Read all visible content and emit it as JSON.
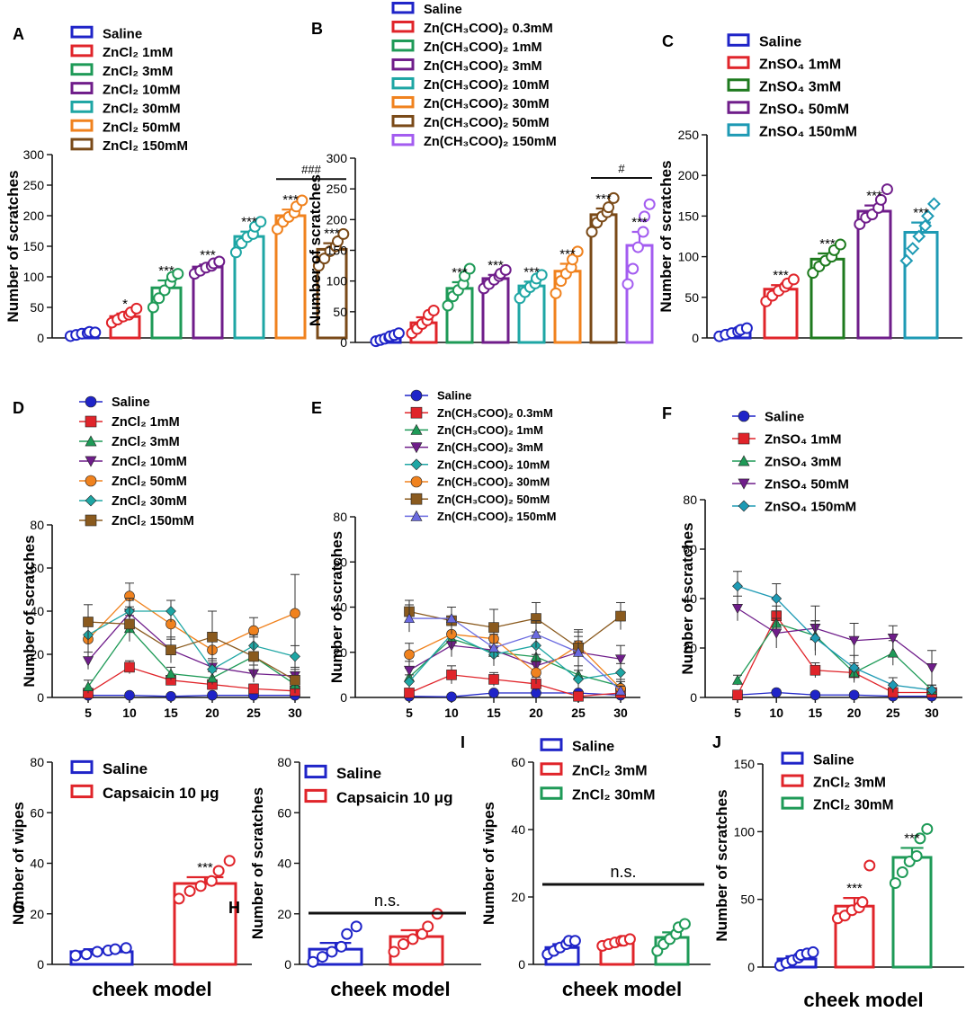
{
  "chart_data": [
    {
      "id": "A",
      "type": "bar",
      "ylabel": "Number of scratches",
      "ylim": [
        0,
        300
      ],
      "yticks": [
        0,
        50,
        100,
        150,
        200,
        250,
        300
      ],
      "series": [
        {
          "name": "Saline",
          "color": "#1f24c8",
          "value": 7,
          "sem": 2,
          "points": [
            3,
            5,
            7,
            8,
            10,
            9
          ],
          "sig": ""
        },
        {
          "name": "ZnCl₂ 1mM",
          "color": "#e0242a",
          "value": 35,
          "sem": 5,
          "points": [
            25,
            30,
            35,
            38,
            42,
            48
          ],
          "sig": "*"
        },
        {
          "name": "ZnCl₂ 3mM",
          "color": "#1e9a57",
          "value": 82,
          "sem": 12,
          "points": [
            50,
            65,
            78,
            90,
            100,
            105
          ],
          "sig": "***"
        },
        {
          "name": "ZnCl₂ 10mM",
          "color": "#6f1d8a",
          "value": 116,
          "sem": 4,
          "points": [
            105,
            110,
            115,
            118,
            122,
            125
          ],
          "sig": "***"
        },
        {
          "name": "ZnCl₂ 30mM",
          "color": "#1ea6a4",
          "value": 166,
          "sem": 8,
          "points": [
            140,
            155,
            165,
            170,
            182,
            190
          ],
          "sig": "***"
        },
        {
          "name": "ZnCl₂ 50mM",
          "color": "#f0821e",
          "value": 200,
          "sem": 10,
          "points": [
            178,
            190,
            198,
            205,
            215,
            225
          ],
          "sig": "***"
        },
        {
          "name": "ZnCl₂ 150mM",
          "color": "#7a4a18",
          "value": 145,
          "sem": 10,
          "points": [
            118,
            130,
            142,
            150,
            158,
            170
          ],
          "sig": "***"
        }
      ],
      "bracket": {
        "from": 5,
        "to": 6,
        "label": "###"
      }
    },
    {
      "id": "B",
      "type": "bar",
      "ylabel": "Number of scratches",
      "ylim": [
        0,
        300
      ],
      "yticks": [
        0,
        50,
        100,
        150,
        200,
        250,
        300
      ],
      "series": [
        {
          "name": "Saline",
          "color": "#1f24c8",
          "value": 7,
          "sem": 2,
          "points": [
            2,
            4,
            6,
            8,
            10,
            12,
            15
          ],
          "sig": ""
        },
        {
          "name": "Zn(CH₃COO)₂ 0.3mM",
          "color": "#e0242a",
          "value": 32,
          "sem": 9,
          "points": [
            15,
            22,
            30,
            36,
            45,
            52
          ],
          "sig": ""
        },
        {
          "name": "Zn(CH₃COO)₂ 1mM",
          "color": "#1e9a57",
          "value": 88,
          "sem": 10,
          "points": [
            60,
            75,
            85,
            95,
            108,
            120
          ],
          "sig": "***"
        },
        {
          "name": "Zn(CH₃COO)₂ 3mM",
          "color": "#6f1d8a",
          "value": 104,
          "sem": 6,
          "points": [
            88,
            95,
            102,
            108,
            112,
            118
          ],
          "sig": "***"
        },
        {
          "name": "Zn(CH₃COO)₂ 10mM",
          "color": "#1ea6a4",
          "value": 92,
          "sem": 7,
          "points": [
            72,
            82,
            90,
            96,
            104,
            110
          ],
          "sig": "***"
        },
        {
          "name": "Zn(CH₃COO)₂ 30mM",
          "color": "#f0821e",
          "value": 116,
          "sem": 12,
          "points": [
            80,
            100,
            112,
            122,
            135,
            148
          ],
          "sig": "***"
        },
        {
          "name": "Zn(CH₃COO)₂ 50mM",
          "color": "#7a4a18",
          "value": 208,
          "sem": 10,
          "points": [
            180,
            195,
            205,
            212,
            220,
            235
          ],
          "sig": "***"
        },
        {
          "name": "Zn(CH₃COO)₂ 150mM",
          "color": "#a35cf0",
          "value": 158,
          "sem": 22,
          "points": [
            95,
            120,
            155,
            180,
            205,
            225
          ],
          "sig": "***"
        }
      ],
      "bracket": {
        "from": 6,
        "to": 7,
        "label": "#"
      }
    },
    {
      "id": "C",
      "type": "bar",
      "ylabel": "Number of scratches",
      "ylim": [
        0,
        250
      ],
      "yticks": [
        0,
        50,
        100,
        150,
        200,
        250
      ],
      "series": [
        {
          "name": "Saline",
          "color": "#1f24c8",
          "value": 7,
          "sem": 2,
          "points": [
            2,
            4,
            6,
            8,
            10,
            12
          ],
          "sig": ""
        },
        {
          "name": "ZnSO₄ 1mM",
          "color": "#e0242a",
          "value": 60,
          "sem": 5,
          "points": [
            45,
            52,
            58,
            63,
            67,
            72
          ],
          "sig": "***"
        },
        {
          "name": "ZnSO₄ 3mM",
          "color": "#1e7a1e",
          "value": 97,
          "sem": 7,
          "points": [
            80,
            88,
            95,
            100,
            108,
            115
          ],
          "sig": "***"
        },
        {
          "name": "ZnSO₄ 50mM",
          "color": "#6f1d8a",
          "value": 156,
          "sem": 7,
          "points": [
            140,
            148,
            152,
            160,
            170,
            183
          ],
          "sig": "***"
        },
        {
          "name": "ZnSO₄ 150mM",
          "color": "#1e9ab4",
          "value": 130,
          "sem": 12,
          "points": [
            95,
            110,
            125,
            138,
            150,
            165
          ],
          "sig": "***"
        }
      ]
    },
    {
      "id": "D",
      "type": "line",
      "ylabel": "Number of scratches",
      "ylim": [
        0,
        80
      ],
      "yticks": [
        0,
        20,
        40,
        60,
        80
      ],
      "x": [
        5,
        10,
        15,
        20,
        25,
        30
      ],
      "series": [
        {
          "name": "Saline",
          "color": "#1f24c8",
          "marker": "circle",
          "values": [
            1,
            1,
            0.5,
            1,
            1,
            1
          ],
          "err": [
            0.5,
            0.5,
            0.5,
            0.5,
            0.5,
            0.5
          ]
        },
        {
          "name": "ZnCl₂ 1mM",
          "color": "#e0242a",
          "marker": "square",
          "values": [
            2,
            14,
            8,
            6,
            4,
            3
          ],
          "err": [
            1,
            3,
            2,
            2,
            1,
            1
          ]
        },
        {
          "name": "ZnCl₂ 3mM",
          "color": "#1e9a57",
          "marker": "triangle",
          "values": [
            5,
            32,
            11,
            9,
            19,
            6
          ],
          "err": [
            3,
            6,
            3,
            3,
            5,
            3
          ]
        },
        {
          "name": "ZnCl₂ 10mM",
          "color": "#6f1d8a",
          "marker": "triangle-down",
          "values": [
            17,
            39,
            22,
            14,
            11,
            10
          ],
          "err": [
            4,
            6,
            5,
            4,
            4,
            3
          ]
        },
        {
          "name": "ZnCl₂ 50mM",
          "color": "#f0821e",
          "marker": "circle",
          "values": [
            27,
            47,
            34,
            22,
            31,
            39
          ],
          "err": [
            6,
            6,
            6,
            7,
            6,
            18
          ]
        },
        {
          "name": "ZnCl₂ 30mM",
          "color": "#1ea6a4",
          "marker": "diamond",
          "values": [
            29,
            40,
            40,
            13,
            24,
            19
          ],
          "err": [
            5,
            6,
            5,
            4,
            5,
            5
          ]
        },
        {
          "name": "ZnCl₂ 150mM",
          "color": "#8a5a1e",
          "marker": "square",
          "values": [
            35,
            34,
            22,
            28,
            19,
            8
          ],
          "err": [
            8,
            8,
            6,
            12,
            9,
            6
          ]
        }
      ]
    },
    {
      "id": "E",
      "type": "line",
      "ylabel": "Number of scratches",
      "ylim": [
        0,
        80
      ],
      "yticks": [
        0,
        20,
        40,
        60,
        80
      ],
      "x": [
        5,
        10,
        15,
        20,
        25,
        30
      ],
      "series": [
        {
          "name": "Saline",
          "color": "#1f24c8",
          "marker": "circle",
          "values": [
            0.5,
            0.3,
            2,
            2,
            2,
            1
          ],
          "err": [
            0.5,
            0.5,
            1,
            1,
            1,
            1
          ]
        },
        {
          "name": "Zn(CH₃COO)₂ 0.3mM",
          "color": "#e0242a",
          "marker": "square",
          "values": [
            2,
            10,
            8,
            6,
            0.5,
            2
          ],
          "err": [
            1,
            4,
            3,
            3,
            0.5,
            1
          ]
        },
        {
          "name": "Zn(CH₃COO)₂ 1mM",
          "color": "#1e9a57",
          "marker": "triangle",
          "values": [
            9,
            26,
            20,
            18,
            10,
            5
          ],
          "err": [
            4,
            6,
            5,
            5,
            4,
            3
          ]
        },
        {
          "name": "Zn(CH₃COO)₂ 3mM",
          "color": "#6f1d8a",
          "marker": "triangle-down",
          "values": [
            12,
            23,
            21,
            14,
            20,
            17
          ],
          "err": [
            4,
            5,
            5,
            5,
            5,
            6
          ]
        },
        {
          "name": "Zn(CH₃COO)₂ 10mM",
          "color": "#1ea6a4",
          "marker": "diamond",
          "values": [
            7,
            28,
            19,
            23,
            8,
            11
          ],
          "err": [
            3,
            6,
            5,
            6,
            4,
            4
          ]
        },
        {
          "name": "Zn(CH₃COO)₂ 30mM",
          "color": "#f0821e",
          "marker": "circle",
          "values": [
            19,
            28,
            26,
            11,
            23,
            4
          ],
          "err": [
            5,
            6,
            6,
            5,
            6,
            3
          ]
        },
        {
          "name": "Zn(CH₃COO)₂ 50mM",
          "color": "#8a5a1e",
          "marker": "square",
          "values": [
            38,
            34,
            31,
            35,
            22,
            36
          ],
          "err": [
            5,
            6,
            8,
            7,
            8,
            6
          ]
        },
        {
          "name": "Zn(CH₃COO)₂ 150mM",
          "color": "#6a6ae0",
          "marker": "triangle",
          "values": [
            35,
            35,
            22,
            28,
            20,
            3
          ],
          "err": [
            6,
            5,
            6,
            6,
            7,
            2
          ]
        }
      ]
    },
    {
      "id": "F",
      "type": "line",
      "ylabel": "Number of scratches",
      "ylim": [
        0,
        80
      ],
      "yticks": [
        0,
        20,
        40,
        60,
        80
      ],
      "x": [
        5,
        10,
        15,
        20,
        25,
        30
      ],
      "series": [
        {
          "name": "Saline",
          "color": "#1f24c8",
          "marker": "circle",
          "values": [
            1,
            2,
            1,
            1,
            0.5,
            0.5
          ],
          "err": [
            0.5,
            0.5,
            0.5,
            0.5,
            0.5,
            0.5
          ]
        },
        {
          "name": "ZnSO₄ 1mM",
          "color": "#e0242a",
          "marker": "square",
          "values": [
            1,
            33,
            11,
            10,
            2,
            2
          ],
          "err": [
            0.5,
            4,
            3,
            3,
            1,
            1
          ]
        },
        {
          "name": "ZnSO₄ 3mM",
          "color": "#1e9a57",
          "marker": "triangle",
          "values": [
            7,
            30,
            25,
            10,
            18,
            3
          ],
          "err": [
            2,
            5,
            6,
            4,
            5,
            2
          ]
        },
        {
          "name": "ZnSO₄ 50mM",
          "color": "#6f1d8a",
          "marker": "triangle-down",
          "values": [
            36,
            26,
            28,
            23,
            24,
            12
          ],
          "err": [
            5,
            6,
            9,
            7,
            5,
            7
          ]
        },
        {
          "name": "ZnSO₄ 150mM",
          "color": "#1e9ab4",
          "marker": "diamond",
          "values": [
            45,
            40,
            24,
            12,
            5,
            3
          ],
          "err": [
            6,
            6,
            7,
            5,
            3,
            2
          ]
        }
      ]
    },
    {
      "id": "G",
      "type": "bar",
      "ylabel": "Number of wipes",
      "xlabel": "cheek model",
      "ylim": [
        0,
        80
      ],
      "yticks": [
        0,
        20,
        40,
        60,
        80
      ],
      "series": [
        {
          "name": "Saline",
          "color": "#1f24c8",
          "value": 5,
          "sem": 1,
          "points": [
            3.5,
            4,
            5,
            5.5,
            6,
            6.5
          ],
          "sig": ""
        },
        {
          "name": "Capsaicin 10 μg",
          "color": "#e0242a",
          "value": 32,
          "sem": 2.5,
          "points": [
            26,
            29,
            31,
            33,
            37,
            41
          ],
          "sig": "***"
        }
      ]
    },
    {
      "id": "H",
      "type": "bar",
      "ylabel": "Number of scratches",
      "xlabel": "cheek model",
      "ylim": [
        0,
        80
      ],
      "yticks": [
        0,
        20,
        40,
        60,
        80
      ],
      "series": [
        {
          "name": "Saline",
          "color": "#1f24c8",
          "value": 6,
          "sem": 2.5,
          "points": [
            1,
            3,
            5,
            7,
            12,
            15
          ],
          "sig": ""
        },
        {
          "name": "Capsaicin 10 μg",
          "color": "#e0242a",
          "value": 11,
          "sem": 2.5,
          "points": [
            5,
            8,
            10,
            12,
            15,
            20
          ],
          "sig": ""
        }
      ],
      "line_annotation": "n.s."
    },
    {
      "id": "I",
      "type": "bar",
      "ylabel": "Number of wipes",
      "xlabel": "cheek model",
      "ylim": [
        0,
        60
      ],
      "yticks": [
        0,
        20,
        40,
        60
      ],
      "series": [
        {
          "name": "Saline",
          "color": "#1f24c8",
          "value": 5,
          "sem": 1,
          "points": [
            3,
            4,
            5,
            6,
            7,
            7
          ],
          "sig": ""
        },
        {
          "name": "ZnCl₂ 3mM",
          "color": "#e0242a",
          "value": 6.5,
          "sem": 0.5,
          "points": [
            5.5,
            6,
            6.5,
            7,
            7,
            7.5
          ],
          "sig": ""
        },
        {
          "name": "ZnCl₂ 30mM",
          "color": "#1e9a57",
          "value": 8,
          "sem": 1.5,
          "points": [
            4,
            6,
            7.5,
            9,
            11,
            12
          ],
          "sig": ""
        }
      ],
      "line_annotation": "n.s."
    },
    {
      "id": "J",
      "type": "bar",
      "ylabel": "Number of scratches",
      "xlabel": "cheek model",
      "ylim": [
        0,
        150
      ],
      "yticks": [
        0,
        50,
        100,
        150
      ],
      "series": [
        {
          "name": "Saline",
          "color": "#1f24c8",
          "value": 6,
          "sem": 2,
          "points": [
            1,
            3,
            5,
            7,
            9,
            10,
            11
          ],
          "sig": ""
        },
        {
          "name": "ZnCl₂ 3mM",
          "color": "#e0242a",
          "value": 45,
          "sem": 6,
          "points": [
            36,
            38,
            42,
            44,
            48,
            75
          ],
          "sig": "***"
        },
        {
          "name": "ZnCl₂ 30mM",
          "color": "#1e9a57",
          "value": 81,
          "sem": 7,
          "points": [
            62,
            70,
            78,
            82,
            95,
            102
          ],
          "sig": "***"
        }
      ]
    }
  ]
}
